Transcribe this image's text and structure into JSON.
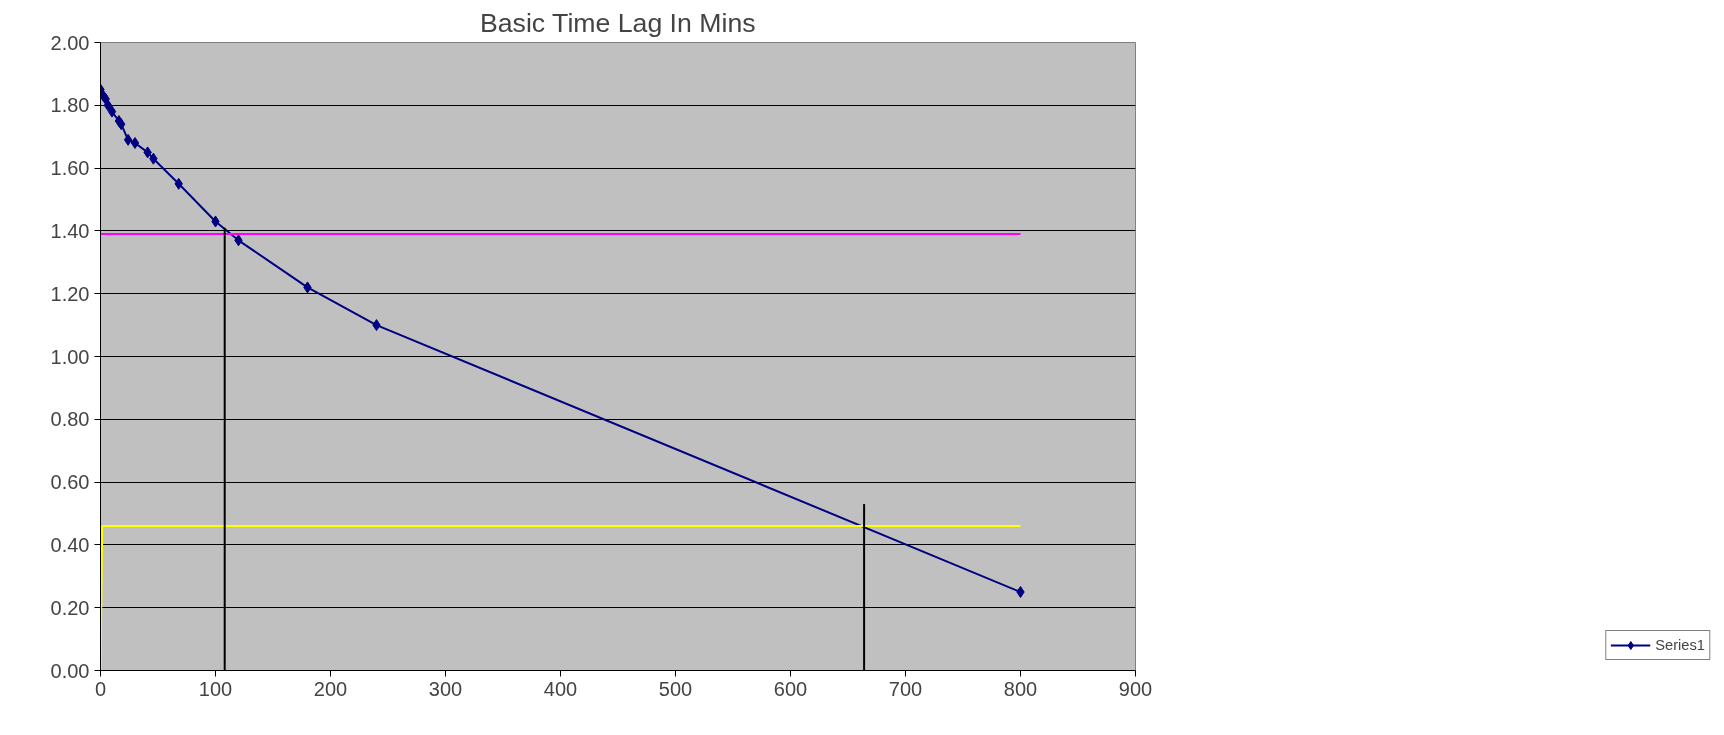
{
  "chart_data": {
    "type": "line",
    "title": "Basic Time Lag In Mins",
    "xlim": [
      0,
      900
    ],
    "xticks": [
      0,
      100,
      200,
      300,
      400,
      500,
      600,
      700,
      800,
      900
    ],
    "ylim": [
      0,
      2
    ],
    "yticks": [
      {
        "value": 0,
        "label": "0.00"
      },
      {
        "value": 0.2,
        "label": "0.20"
      },
      {
        "value": 0.4,
        "label": "0.40"
      },
      {
        "value": 0.6,
        "label": "0.60"
      },
      {
        "value": 0.8,
        "label": "0.80"
      },
      {
        "value": 1.0,
        "label": "1.00"
      },
      {
        "value": 1.2,
        "label": "1.20"
      },
      {
        "value": 1.4,
        "label": "1.40"
      },
      {
        "value": 1.6,
        "label": "1.60"
      },
      {
        "value": 1.8,
        "label": "1.80"
      },
      {
        "value": 2.0,
        "label": "2.00"
      }
    ],
    "grid": "y",
    "legend": "bottom right",
    "series": [
      {
        "name": "Series1",
        "color": "#000080",
        "marker": "diamond",
        "x": [
          0,
          2.5,
          4.5,
          6.5,
          10,
          16,
          18,
          24,
          30,
          41,
          46,
          68,
          100,
          120,
          180,
          240,
          800
        ],
        "values": [
          1.85,
          1.83,
          1.82,
          1.8,
          1.78,
          1.75,
          1.74,
          1.69,
          1.68,
          1.65,
          1.63,
          1.55,
          1.43,
          1.37,
          1.22,
          1.1,
          0.25
        ]
      },
      {
        "color": "#ff00ff",
        "marker": "none",
        "x": [
          0,
          800
        ],
        "values": [
          1.39,
          1.39
        ]
      },
      {
        "color": "#ffff00",
        "marker": "none",
        "x": [
          0,
          1.5,
          800
        ],
        "values": [
          0,
          0.46,
          0.46
        ]
      },
      {
        "color": "#000000",
        "marker": "none",
        "x": [
          108,
          108
        ],
        "values": [
          0,
          1.41
        ]
      },
      {
        "color": "#000000",
        "marker": "none",
        "x": [
          664,
          664
        ],
        "values": [
          0,
          0.53
        ]
      }
    ]
  }
}
